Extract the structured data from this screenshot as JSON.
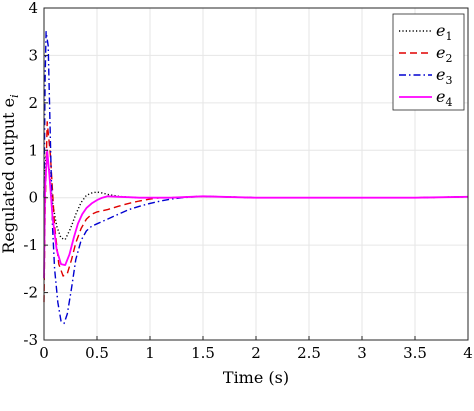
{
  "chart_data": {
    "type": "line",
    "xlabel": "Time (s)",
    "ylabel": "Regulated output e",
    "ylabel_subscript": "i",
    "xlim": [
      0,
      4
    ],
    "ylim": [
      -3,
      4
    ],
    "xticks": [
      "0",
      "0.5",
      "1",
      "1.5",
      "2",
      "2.5",
      "3",
      "3.5",
      "4"
    ],
    "yticks": [
      "4",
      "3",
      "2",
      "1",
      "0",
      "-1",
      "-2",
      "-3"
    ],
    "grid": true,
    "legend_position": "top-right",
    "series": [
      {
        "name": "e1",
        "name_main": "e",
        "name_sub": "1",
        "color": "#000000",
        "dash": "dotted",
        "x": [
          0,
          0.02,
          0.05,
          0.08,
          0.12,
          0.16,
          0.2,
          0.25,
          0.3,
          0.35,
          0.4,
          0.45,
          0.5,
          0.55,
          0.6,
          0.7,
          0.8,
          0.9,
          1.0,
          1.2,
          1.5,
          2.0,
          2.5,
          3.0,
          3.5,
          4.0
        ],
        "y": [
          0.2,
          0.9,
          0.6,
          -0.1,
          -0.6,
          -0.85,
          -0.88,
          -0.65,
          -0.35,
          -0.1,
          0.05,
          0.1,
          0.12,
          0.1,
          0.07,
          0.03,
          0.01,
          0.0,
          0.0,
          0.0,
          0.03,
          0.0,
          0.0,
          0.0,
          0.0,
          0.02
        ]
      },
      {
        "name": "e2",
        "name_main": "e",
        "name_sub": "2",
        "color": "#e00000",
        "dash": "dashed",
        "x": [
          0,
          0.01,
          0.03,
          0.06,
          0.1,
          0.14,
          0.18,
          0.22,
          0.26,
          0.3,
          0.35,
          0.4,
          0.45,
          0.5,
          0.6,
          0.7,
          0.8,
          0.9,
          1.0,
          1.1,
          1.2,
          1.5,
          2.0,
          2.5,
          3.0,
          3.5,
          4.0
        ],
        "y": [
          -2.2,
          -0.3,
          1.6,
          0.9,
          -0.6,
          -1.4,
          -1.65,
          -1.6,
          -1.3,
          -0.95,
          -0.65,
          -0.45,
          -0.35,
          -0.3,
          -0.25,
          -0.18,
          -0.12,
          -0.07,
          -0.03,
          0.0,
          0.0,
          0.03,
          0.0,
          0.0,
          0.0,
          0.0,
          0.02
        ]
      },
      {
        "name": "e3",
        "name_main": "e",
        "name_sub": "3",
        "color": "#0000d0",
        "dash": "dashdot",
        "x": [
          0,
          0.01,
          0.02,
          0.04,
          0.06,
          0.08,
          0.1,
          0.13,
          0.16,
          0.19,
          0.22,
          0.26,
          0.3,
          0.35,
          0.4,
          0.45,
          0.5,
          0.6,
          0.7,
          0.8,
          0.9,
          1.0,
          1.1,
          1.2,
          1.3,
          1.5,
          2.0,
          2.5,
          3.0,
          3.5,
          4.0
        ],
        "y": [
          0.0,
          2.5,
          3.5,
          3.2,
          1.2,
          -0.6,
          -1.5,
          -2.2,
          -2.6,
          -2.65,
          -2.45,
          -1.9,
          -1.3,
          -0.9,
          -0.7,
          -0.6,
          -0.55,
          -0.45,
          -0.35,
          -0.25,
          -0.18,
          -0.12,
          -0.07,
          -0.03,
          0.0,
          0.03,
          0.0,
          0.0,
          0.0,
          0.0,
          0.02
        ]
      },
      {
        "name": "e4",
        "name_main": "e",
        "name_sub": "4",
        "color": "#ff00ff",
        "dash": "solid",
        "x": [
          0,
          0.01,
          0.03,
          0.05,
          0.08,
          0.12,
          0.16,
          0.2,
          0.24,
          0.28,
          0.32,
          0.36,
          0.4,
          0.45,
          0.5,
          0.55,
          0.6,
          0.7,
          0.8,
          0.9,
          1.0,
          1.1,
          1.2,
          1.5,
          2.0,
          2.5,
          3.0,
          3.5,
          4.0
        ],
        "y": [
          -1.7,
          0.2,
          1.0,
          0.5,
          -0.4,
          -1.1,
          -1.4,
          -1.42,
          -1.2,
          -0.85,
          -0.55,
          -0.35,
          -0.22,
          -0.12,
          -0.05,
          0.0,
          0.03,
          0.02,
          0.01,
          0.0,
          0.0,
          0.0,
          0.0,
          0.03,
          0.0,
          0.0,
          0.0,
          0.0,
          0.02
        ]
      }
    ]
  }
}
